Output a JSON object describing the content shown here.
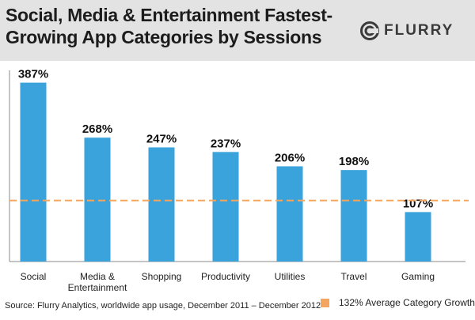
{
  "header": {
    "title": "Social, Media & Entertainment Fastest-Growing App Categories by Sessions"
  },
  "logo": {
    "name": "FLURRY",
    "icon": "flurry-swirl-icon"
  },
  "colors": {
    "bar": "#3aa3dc",
    "average_line": "#f4a660",
    "header_bg": "#e3e3e3"
  },
  "chart_data": {
    "type": "bar",
    "title": "Social, Media & Entertainment Fastest-Growing App Categories by Sessions",
    "categories": [
      "Social",
      "Media & Entertainment",
      "Shopping",
      "Productivity",
      "Utilities",
      "Travel",
      "Gaming"
    ],
    "category_lines": [
      [
        "Social"
      ],
      [
        "Media &",
        "Entertainment"
      ],
      [
        "Shopping"
      ],
      [
        "Productivity"
      ],
      [
        "Utilities"
      ],
      [
        "Travel"
      ],
      [
        "Gaming"
      ]
    ],
    "values": [
      387,
      268,
      247,
      237,
      206,
      198,
      107
    ],
    "value_labels": [
      "387%",
      "268%",
      "247%",
      "237%",
      "206%",
      "198%",
      "107%"
    ],
    "ylim": [
      0,
      400
    ],
    "xlabel": "",
    "ylabel": "",
    "average_line": {
      "value": 132,
      "label": "132% Average Category Growth"
    }
  },
  "footer": {
    "source": "Source: Flurry Analytics, worldwide app usage, December 2011 – December 2012",
    "legend_label": "132% Average Category Growth"
  }
}
